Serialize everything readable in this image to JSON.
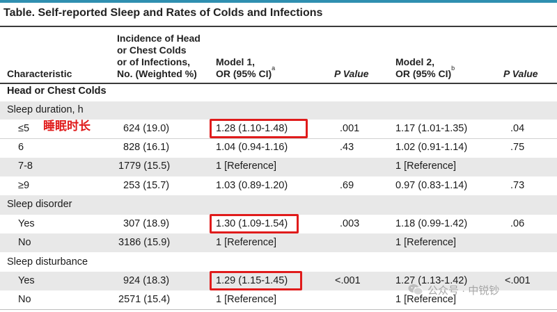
{
  "title": "Table. Self-reported Sleep and Rates of Colds and Infections",
  "headers": {
    "characteristic": "Characteristic",
    "incidence": [
      "Incidence of Head",
      "or Chest Colds",
      "or of Infections,",
      "No. (Weighted %)"
    ],
    "model1": [
      "Model 1,",
      "OR (95% CI)"
    ],
    "model1_sup": "a",
    "p1": "P Value",
    "model2": [
      "Model 2,",
      "OR (95% CI)"
    ],
    "model2_sup": "b",
    "p2": "P Value"
  },
  "rows": [
    {
      "kind": "section",
      "label": "Head or Chest Colds"
    },
    {
      "kind": "group",
      "label": "Sleep duration, h"
    },
    {
      "kind": "data",
      "label": "≤5",
      "incidence": "624 (19.0)",
      "or1": "1.28 (1.10-1.48)",
      "p1": ".001",
      "or2": "1.17 (1.01-1.35)",
      "p2": ".04"
    },
    {
      "kind": "data",
      "label": "6",
      "incidence": "828 (16.1)",
      "or1": "1.04 (0.94-1.16)",
      "p1": ".43",
      "or2": "1.02 (0.91-1.14)",
      "p2": ".75"
    },
    {
      "kind": "data",
      "label": "7-8",
      "incidence": "1779 (15.5)",
      "or1": "1 [Reference]",
      "p1": "",
      "or2": "1 [Reference]",
      "p2": ""
    },
    {
      "kind": "data",
      "label": "≥9",
      "incidence": "253 (15.7)",
      "or1": "1.03 (0.89-1.20)",
      "p1": ".69",
      "or2": "0.97 (0.83-1.14)",
      "p2": ".73"
    },
    {
      "kind": "group",
      "label": "Sleep disorder"
    },
    {
      "kind": "data",
      "label": "Yes",
      "incidence": "307 (18.9)",
      "or1": "1.30 (1.09-1.54)",
      "p1": ".003",
      "or2": "1.18 (0.99-1.42)",
      "p2": ".06"
    },
    {
      "kind": "data",
      "label": "No",
      "incidence": "3186 (15.9)",
      "or1": "1 [Reference]",
      "p1": "",
      "or2": "1 [Reference]",
      "p2": ""
    },
    {
      "kind": "group",
      "label": "Sleep disturbance"
    },
    {
      "kind": "data",
      "label": "Yes",
      "incidence": "924 (18.3)",
      "or1": "1.29 (1.15-1.45)",
      "p1": "<.001",
      "or2": "1.27 (1.13-1.42)",
      "p2": "<.001"
    },
    {
      "kind": "data",
      "label": "No",
      "incidence": "2571 (15.4)",
      "or1": "1 [Reference]",
      "p1": "",
      "or2": "1 [Reference]",
      "p2": ""
    }
  ],
  "annotation": "睡眠时长",
  "watermark": "公众号 · 中锐钞",
  "colors": {
    "accent_rule": "#2f8fb0",
    "highlight": "#e01b1b",
    "row_shade": "#e8e8e8"
  }
}
